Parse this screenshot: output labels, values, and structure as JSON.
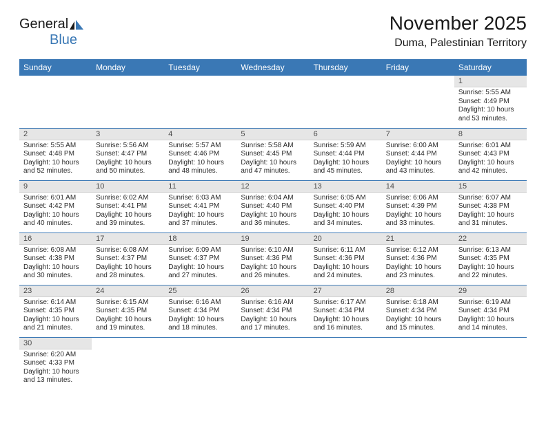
{
  "logo": {
    "text1": "General",
    "text2": "Blue"
  },
  "title": "November 2025",
  "location": "Duma, Palestinian Territory",
  "colors": {
    "header_bg": "#3a78b5",
    "header_text": "#ffffff",
    "daynum_bg": "#e6e6e6",
    "daynum_text": "#4a4a4a",
    "cell_border": "#3a78b5",
    "body_text": "#2a2a2a",
    "page_bg": "#ffffff",
    "logo_blue": "#3a78b5",
    "logo_dark": "#1a1a1a"
  },
  "typography": {
    "title_fontsize": 28,
    "location_fontsize": 16,
    "header_fontsize": 12,
    "daynum_fontsize": 11,
    "content_fontsize": 10
  },
  "day_headers": [
    "Sunday",
    "Monday",
    "Tuesday",
    "Wednesday",
    "Thursday",
    "Friday",
    "Saturday"
  ],
  "weeks": [
    [
      null,
      null,
      null,
      null,
      null,
      null,
      {
        "num": "1",
        "sunrise": "Sunrise: 5:55 AM",
        "sunset": "Sunset: 4:49 PM",
        "daylight": "Daylight: 10 hours and 53 minutes."
      }
    ],
    [
      {
        "num": "2",
        "sunrise": "Sunrise: 5:55 AM",
        "sunset": "Sunset: 4:48 PM",
        "daylight": "Daylight: 10 hours and 52 minutes."
      },
      {
        "num": "3",
        "sunrise": "Sunrise: 5:56 AM",
        "sunset": "Sunset: 4:47 PM",
        "daylight": "Daylight: 10 hours and 50 minutes."
      },
      {
        "num": "4",
        "sunrise": "Sunrise: 5:57 AM",
        "sunset": "Sunset: 4:46 PM",
        "daylight": "Daylight: 10 hours and 48 minutes."
      },
      {
        "num": "5",
        "sunrise": "Sunrise: 5:58 AM",
        "sunset": "Sunset: 4:45 PM",
        "daylight": "Daylight: 10 hours and 47 minutes."
      },
      {
        "num": "6",
        "sunrise": "Sunrise: 5:59 AM",
        "sunset": "Sunset: 4:44 PM",
        "daylight": "Daylight: 10 hours and 45 minutes."
      },
      {
        "num": "7",
        "sunrise": "Sunrise: 6:00 AM",
        "sunset": "Sunset: 4:44 PM",
        "daylight": "Daylight: 10 hours and 43 minutes."
      },
      {
        "num": "8",
        "sunrise": "Sunrise: 6:01 AM",
        "sunset": "Sunset: 4:43 PM",
        "daylight": "Daylight: 10 hours and 42 minutes."
      }
    ],
    [
      {
        "num": "9",
        "sunrise": "Sunrise: 6:01 AM",
        "sunset": "Sunset: 4:42 PM",
        "daylight": "Daylight: 10 hours and 40 minutes."
      },
      {
        "num": "10",
        "sunrise": "Sunrise: 6:02 AM",
        "sunset": "Sunset: 4:41 PM",
        "daylight": "Daylight: 10 hours and 39 minutes."
      },
      {
        "num": "11",
        "sunrise": "Sunrise: 6:03 AM",
        "sunset": "Sunset: 4:41 PM",
        "daylight": "Daylight: 10 hours and 37 minutes."
      },
      {
        "num": "12",
        "sunrise": "Sunrise: 6:04 AM",
        "sunset": "Sunset: 4:40 PM",
        "daylight": "Daylight: 10 hours and 36 minutes."
      },
      {
        "num": "13",
        "sunrise": "Sunrise: 6:05 AM",
        "sunset": "Sunset: 4:40 PM",
        "daylight": "Daylight: 10 hours and 34 minutes."
      },
      {
        "num": "14",
        "sunrise": "Sunrise: 6:06 AM",
        "sunset": "Sunset: 4:39 PM",
        "daylight": "Daylight: 10 hours and 33 minutes."
      },
      {
        "num": "15",
        "sunrise": "Sunrise: 6:07 AM",
        "sunset": "Sunset: 4:38 PM",
        "daylight": "Daylight: 10 hours and 31 minutes."
      }
    ],
    [
      {
        "num": "16",
        "sunrise": "Sunrise: 6:08 AM",
        "sunset": "Sunset: 4:38 PM",
        "daylight": "Daylight: 10 hours and 30 minutes."
      },
      {
        "num": "17",
        "sunrise": "Sunrise: 6:08 AM",
        "sunset": "Sunset: 4:37 PM",
        "daylight": "Daylight: 10 hours and 28 minutes."
      },
      {
        "num": "18",
        "sunrise": "Sunrise: 6:09 AM",
        "sunset": "Sunset: 4:37 PM",
        "daylight": "Daylight: 10 hours and 27 minutes."
      },
      {
        "num": "19",
        "sunrise": "Sunrise: 6:10 AM",
        "sunset": "Sunset: 4:36 PM",
        "daylight": "Daylight: 10 hours and 26 minutes."
      },
      {
        "num": "20",
        "sunrise": "Sunrise: 6:11 AM",
        "sunset": "Sunset: 4:36 PM",
        "daylight": "Daylight: 10 hours and 24 minutes."
      },
      {
        "num": "21",
        "sunrise": "Sunrise: 6:12 AM",
        "sunset": "Sunset: 4:36 PM",
        "daylight": "Daylight: 10 hours and 23 minutes."
      },
      {
        "num": "22",
        "sunrise": "Sunrise: 6:13 AM",
        "sunset": "Sunset: 4:35 PM",
        "daylight": "Daylight: 10 hours and 22 minutes."
      }
    ],
    [
      {
        "num": "23",
        "sunrise": "Sunrise: 6:14 AM",
        "sunset": "Sunset: 4:35 PM",
        "daylight": "Daylight: 10 hours and 21 minutes."
      },
      {
        "num": "24",
        "sunrise": "Sunrise: 6:15 AM",
        "sunset": "Sunset: 4:35 PM",
        "daylight": "Daylight: 10 hours and 19 minutes."
      },
      {
        "num": "25",
        "sunrise": "Sunrise: 6:16 AM",
        "sunset": "Sunset: 4:34 PM",
        "daylight": "Daylight: 10 hours and 18 minutes."
      },
      {
        "num": "26",
        "sunrise": "Sunrise: 6:16 AM",
        "sunset": "Sunset: 4:34 PM",
        "daylight": "Daylight: 10 hours and 17 minutes."
      },
      {
        "num": "27",
        "sunrise": "Sunrise: 6:17 AM",
        "sunset": "Sunset: 4:34 PM",
        "daylight": "Daylight: 10 hours and 16 minutes."
      },
      {
        "num": "28",
        "sunrise": "Sunrise: 6:18 AM",
        "sunset": "Sunset: 4:34 PM",
        "daylight": "Daylight: 10 hours and 15 minutes."
      },
      {
        "num": "29",
        "sunrise": "Sunrise: 6:19 AM",
        "sunset": "Sunset: 4:34 PM",
        "daylight": "Daylight: 10 hours and 14 minutes."
      }
    ],
    [
      {
        "num": "30",
        "sunrise": "Sunrise: 6:20 AM",
        "sunset": "Sunset: 4:33 PM",
        "daylight": "Daylight: 10 hours and 13 minutes."
      },
      null,
      null,
      null,
      null,
      null,
      null
    ]
  ]
}
